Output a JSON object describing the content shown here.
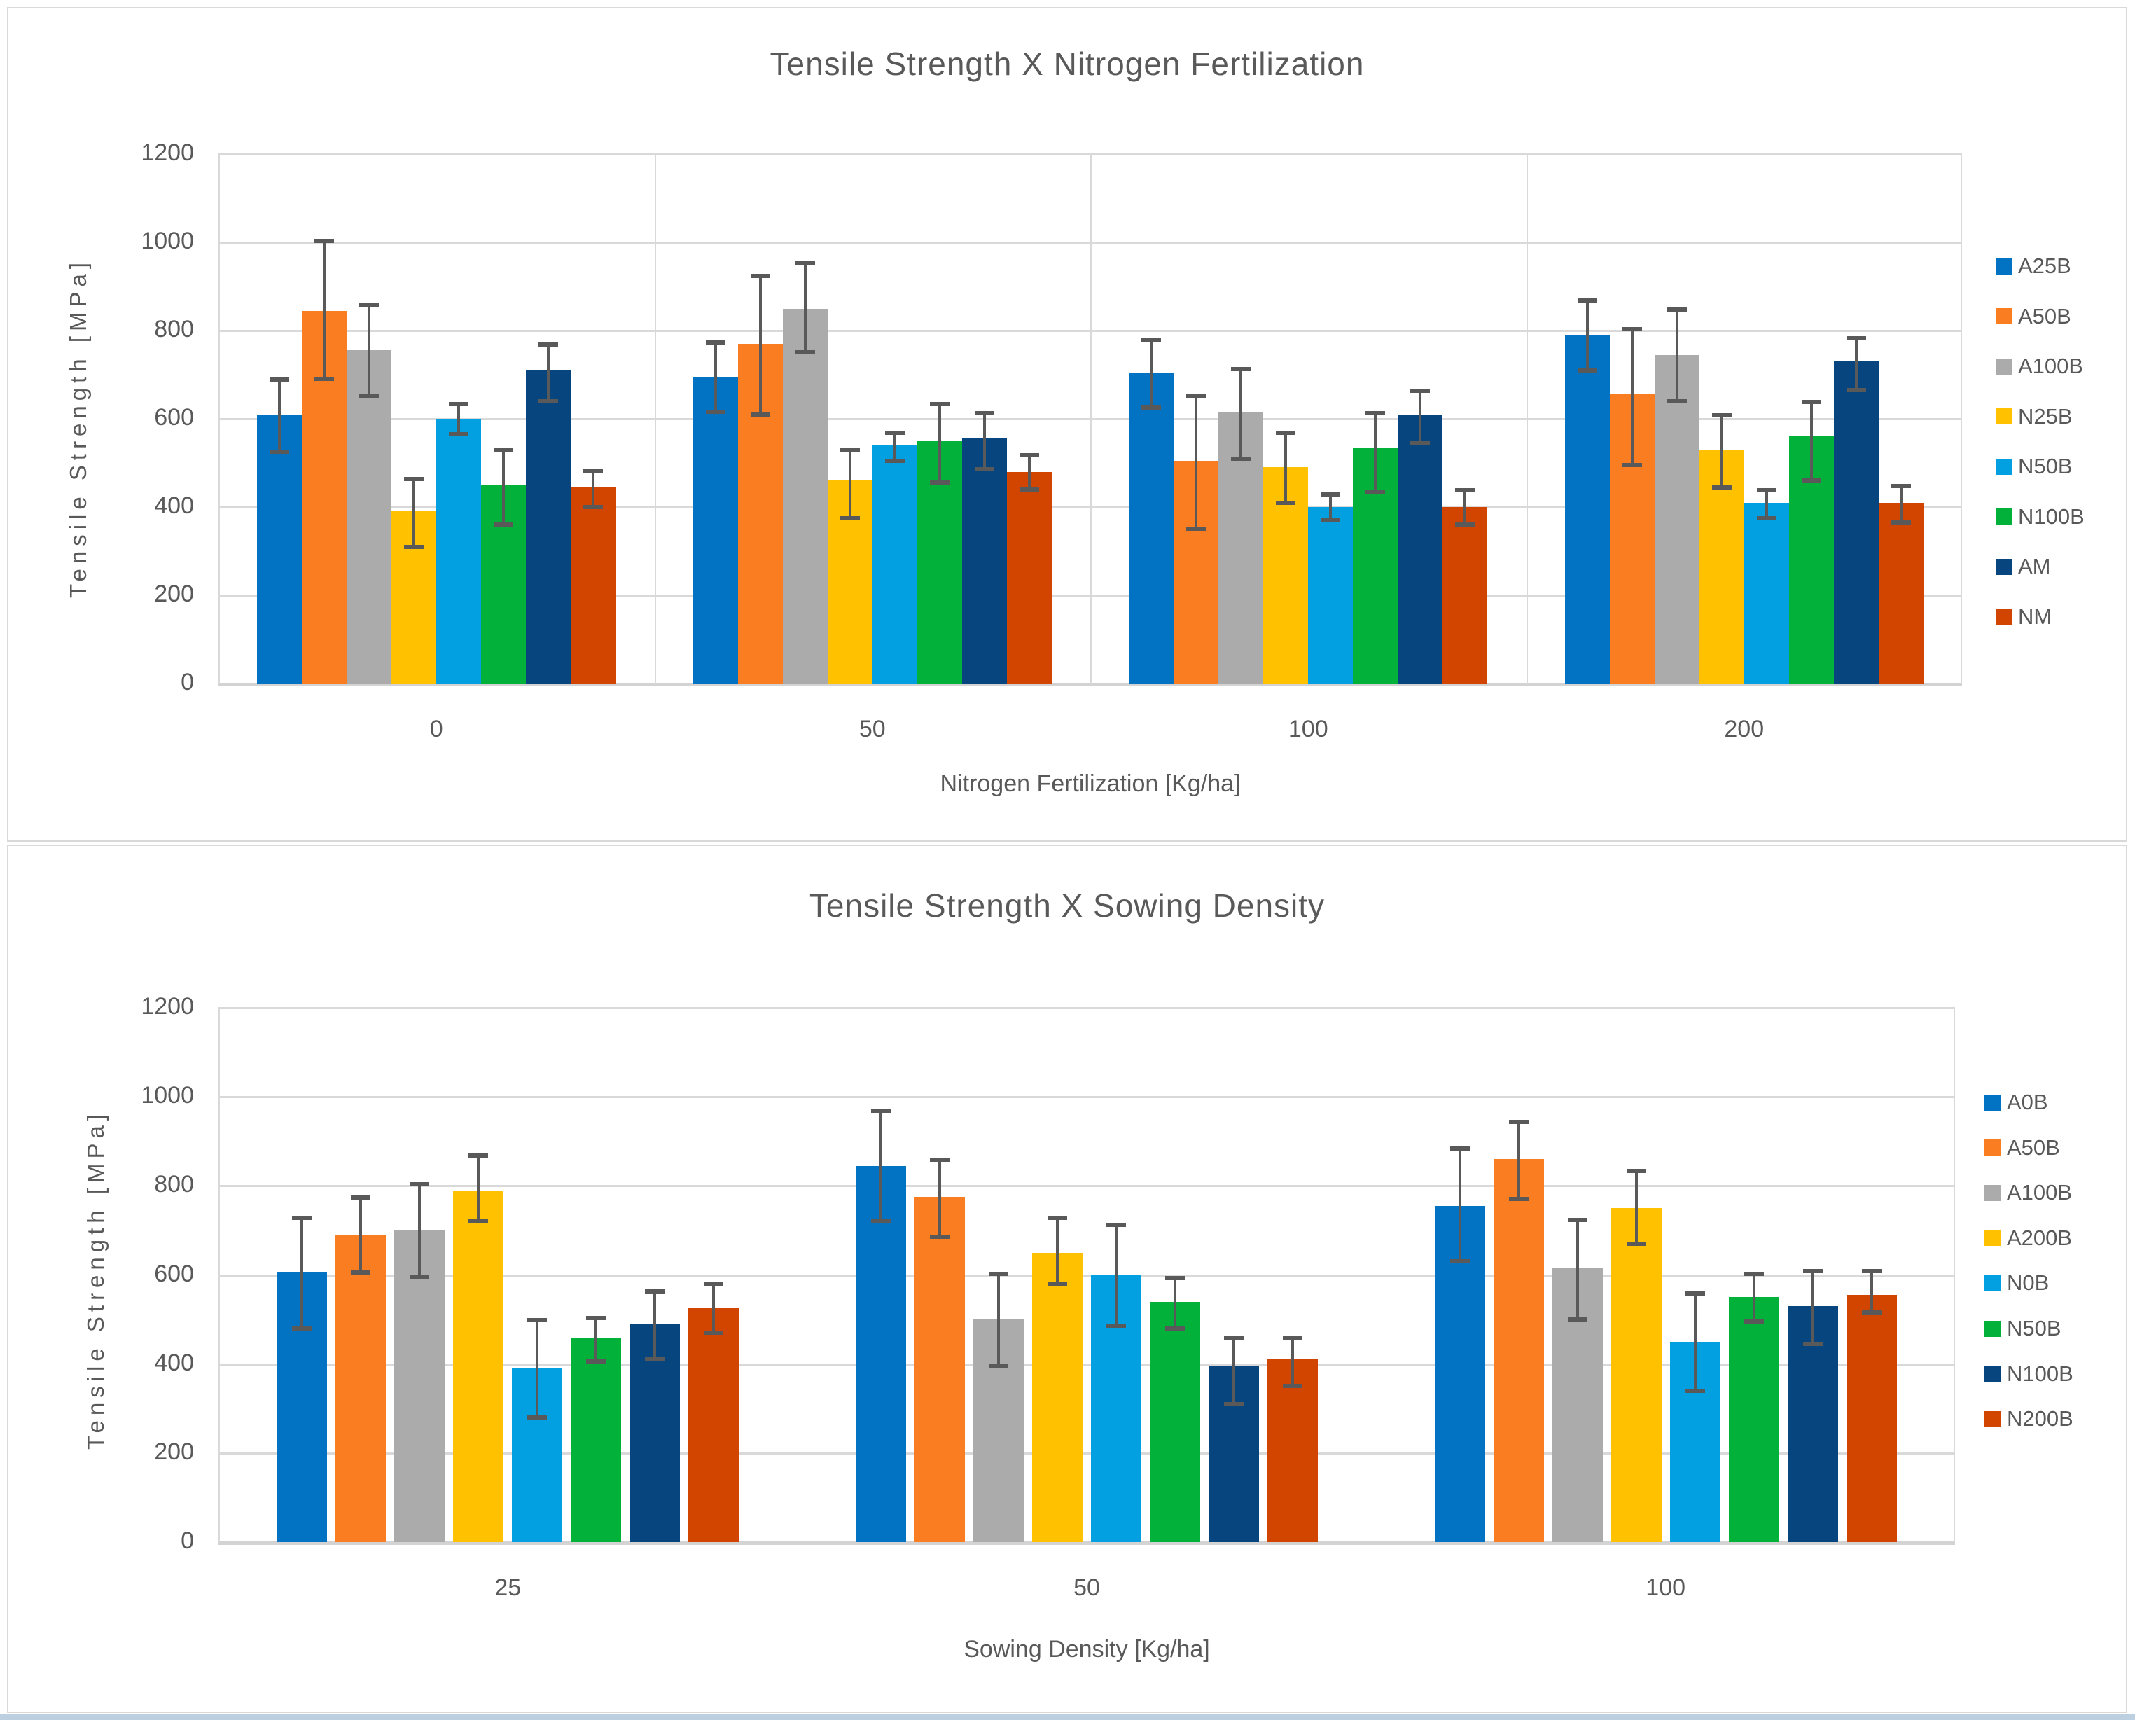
{
  "window": {
    "background": "#ffffff",
    "panel_border_color": "#d9d9d9",
    "text_color": "#595959",
    "gridline_color": "#d9d9d9",
    "error_bar_color": "#595959"
  },
  "chart_data": [
    {
      "type": "bar",
      "title": "Tensile Strength X Nitrogen Fertilization",
      "ylabel": "Tensile Strength  [MPa]",
      "xlabel": "Nitrogen Fertilization [Kg/ha]",
      "ylim": [
        0,
        1200
      ],
      "y_ticks": [
        1200,
        1000,
        800,
        600,
        400,
        200,
        0
      ],
      "grid": true,
      "category_separators": true,
      "legend_position": "right",
      "categories": [
        "0",
        "50",
        "100",
        "200"
      ],
      "series": [
        {
          "name": "A25B",
          "color": "#0272c3",
          "values": [
            610,
            695,
            705,
            790
          ],
          "err": [
            [
              530,
              685
            ],
            [
              620,
              770
            ],
            [
              630,
              775
            ],
            [
              715,
              865
            ]
          ]
        },
        {
          "name": "A50B",
          "color": "#fb7d21",
          "values": [
            845,
            770,
            505,
            655
          ],
          "err": [
            [
              695,
              1000
            ],
            [
              615,
              920
            ],
            [
              355,
              650
            ],
            [
              500,
              800
            ]
          ]
        },
        {
          "name": "A100B",
          "color": "#ababab",
          "values": [
            755,
            850,
            615,
            745
          ],
          "err": [
            [
              655,
              855
            ],
            [
              755,
              950
            ],
            [
              515,
              710
            ],
            [
              645,
              845
            ]
          ]
        },
        {
          "name": "N25B",
          "color": "#ffc100",
          "values": [
            390,
            460,
            490,
            530
          ],
          "err": [
            [
              315,
              460
            ],
            [
              380,
              525
            ],
            [
              415,
              565
            ],
            [
              450,
              605
            ]
          ]
        },
        {
          "name": "N50B",
          "color": "#02a0e1",
          "values": [
            600,
            540,
            400,
            410
          ],
          "err": [
            [
              570,
              630
            ],
            [
              510,
              565
            ],
            [
              375,
              425
            ],
            [
              380,
              435
            ]
          ]
        },
        {
          "name": "N100B",
          "color": "#02b13a",
          "values": [
            450,
            550,
            535,
            560
          ],
          "err": [
            [
              365,
              525
            ],
            [
              460,
              630
            ],
            [
              440,
              610
            ],
            [
              465,
              635
            ]
          ]
        },
        {
          "name": "AM",
          "color": "#06457d",
          "values": [
            710,
            555,
            610,
            730
          ],
          "err": [
            [
              645,
              765
            ],
            [
              490,
              610
            ],
            [
              550,
              660
            ],
            [
              670,
              780
            ]
          ]
        },
        {
          "name": "NM",
          "color": "#d14501",
          "values": [
            445,
            480,
            400,
            410
          ],
          "err": [
            [
              405,
              480
            ],
            [
              445,
              515
            ],
            [
              365,
              435
            ],
            [
              370,
              445
            ]
          ]
        }
      ]
    },
    {
      "type": "bar",
      "title": "Tensile Strength X Sowing Density",
      "ylabel": "Tensile Strength  [MPa]",
      "xlabel": "Sowing Density [Kg/ha]",
      "ylim": [
        0,
        1200
      ],
      "y_ticks": [
        1200,
        1000,
        800,
        600,
        400,
        200,
        0
      ],
      "grid": true,
      "category_separators": false,
      "legend_position": "right",
      "categories": [
        "25",
        "50",
        "100"
      ],
      "series": [
        {
          "name": "A0B",
          "color": "#0272c3",
          "values": [
            605,
            845,
            755
          ],
          "err": [
            [
              485,
              725
            ],
            [
              725,
              965
            ],
            [
              635,
              880
            ]
          ]
        },
        {
          "name": "A50B",
          "color": "#fb7d21",
          "values": [
            690,
            775,
            860
          ],
          "err": [
            [
              610,
              770
            ],
            [
              690,
              855
            ],
            [
              775,
              940
            ]
          ]
        },
        {
          "name": "A100B",
          "color": "#ababab",
          "values": [
            700,
            500,
            615
          ],
          "err": [
            [
              600,
              800
            ],
            [
              400,
              600
            ],
            [
              505,
              720
            ]
          ]
        },
        {
          "name": "A200B",
          "color": "#ffc100",
          "values": [
            790,
            650,
            750
          ],
          "err": [
            [
              725,
              865
            ],
            [
              585,
              725
            ],
            [
              675,
              830
            ]
          ]
        },
        {
          "name": "N0B",
          "color": "#02a0e1",
          "values": [
            390,
            600,
            450
          ],
          "err": [
            [
              285,
              495
            ],
            [
              490,
              710
            ],
            [
              345,
              555
            ]
          ]
        },
        {
          "name": "N50B",
          "color": "#02b13a",
          "values": [
            460,
            540,
            550
          ],
          "err": [
            [
              410,
              500
            ],
            [
              485,
              590
            ],
            [
              500,
              600
            ]
          ]
        },
        {
          "name": "N100B",
          "color": "#06457d",
          "values": [
            490,
            395,
            530
          ],
          "err": [
            [
              415,
              560
            ],
            [
              315,
              455
            ],
            [
              450,
              605
            ]
          ]
        },
        {
          "name": "N200B",
          "color": "#d14501",
          "values": [
            525,
            410,
            555
          ],
          "err": [
            [
              475,
              575
            ],
            [
              355,
              455
            ],
            [
              520,
              605
            ]
          ]
        }
      ]
    }
  ]
}
